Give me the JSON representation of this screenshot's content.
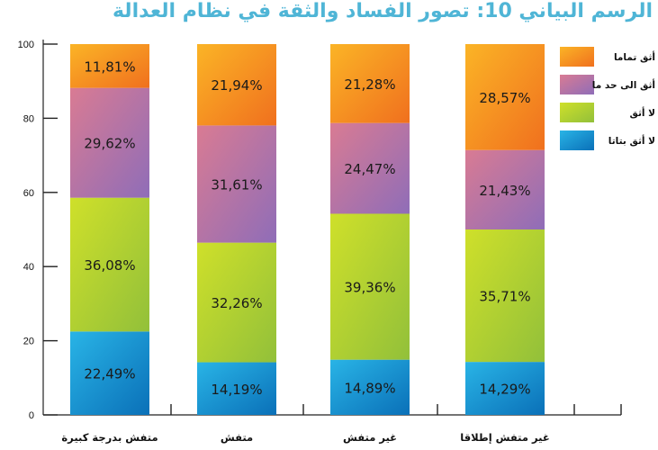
{
  "title": "الرسم البياني 10: تصور الفساد والثقة في نظام العدالة",
  "chart_data": {
    "type": "bar",
    "stacked": true,
    "categories": [
      "متفش بدرجة كبيرة",
      "متفش",
      "غير متفش",
      "غير متفش إطلاقا"
    ],
    "ylim": [
      0,
      100
    ],
    "yticks": [
      0,
      20,
      40,
      60,
      80,
      100
    ],
    "grid": false,
    "legend_position": "right",
    "series": [
      {
        "name": "لا أثق بتاتا",
        "values": [
          22.49,
          14.19,
          14.89,
          14.29
        ],
        "labels": [
          "22,49%",
          "14,19%",
          "14,89%",
          "14,29%"
        ],
        "color_top": "#29b4e6",
        "color_bottom": "#0a70b8"
      },
      {
        "name": "لا أثق",
        "values": [
          36.08,
          32.26,
          39.36,
          35.71
        ],
        "labels": [
          "36,08%",
          "32,26%",
          "39,36%",
          "35,71%"
        ],
        "color_top": "#cfe02a",
        "color_bottom": "#92c03a"
      },
      {
        "name": "أثق الى حد ما",
        "values": [
          29.62,
          31.61,
          24.47,
          21.43
        ],
        "labels": [
          "29,62%",
          "31,61%",
          "24,47%",
          "21,43%"
        ],
        "color_top": "#d97b93",
        "color_bottom": "#8f6db8"
      },
      {
        "name": "أثق تماما",
        "values": [
          11.81,
          21.94,
          21.28,
          28.57
        ],
        "labels": [
          "11,81%",
          "21,94%",
          "21,28%",
          "28,57%"
        ],
        "color_top": "#fbb426",
        "color_bottom": "#f0701e"
      }
    ]
  }
}
